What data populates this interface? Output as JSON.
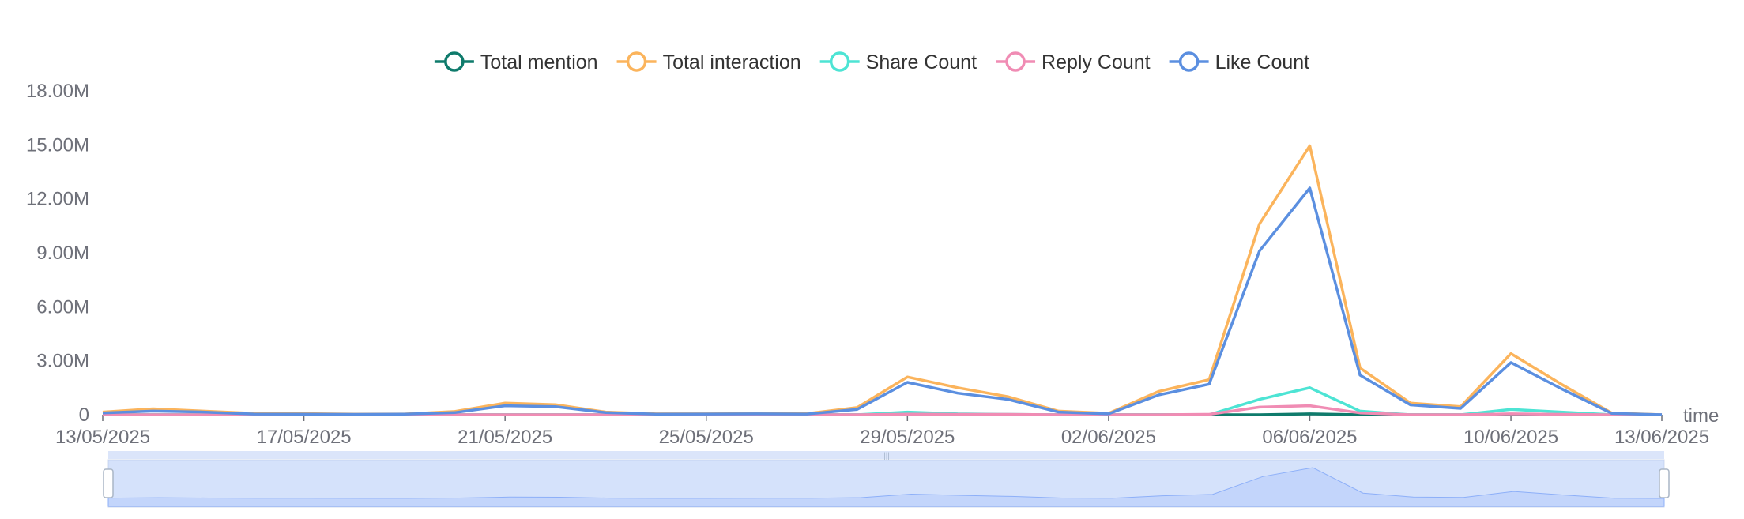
{
  "chart_data": {
    "type": "line",
    "xlabel": "time",
    "ylabel": "",
    "ylim": [
      0,
      18000000
    ],
    "y_ticks": [
      "0",
      "3.00M",
      "6.00M",
      "9.00M",
      "12.00M",
      "15.00M",
      "18.00M"
    ],
    "x_ticks": [
      "13/05/2025",
      "17/05/2025",
      "21/05/2025",
      "25/05/2025",
      "29/05/2025",
      "02/06/2025",
      "06/06/2025",
      "10/06/2025",
      "13/06/2025"
    ],
    "x": [
      "13/05/2025",
      "14/05/2025",
      "15/05/2025",
      "16/05/2025",
      "17/05/2025",
      "18/05/2025",
      "19/05/2025",
      "20/05/2025",
      "21/05/2025",
      "22/05/2025",
      "23/05/2025",
      "24/05/2025",
      "25/05/2025",
      "26/05/2025",
      "27/05/2025",
      "28/05/2025",
      "29/05/2025",
      "30/05/2025",
      "31/05/2025",
      "01/06/2025",
      "02/06/2025",
      "03/06/2025",
      "04/06/2025",
      "05/06/2025",
      "06/06/2025",
      "07/06/2025",
      "08/06/2025",
      "09/06/2025",
      "10/06/2025",
      "11/06/2025",
      "12/06/2025",
      "13/06/2025"
    ],
    "legend_position": "top-center",
    "grid": false,
    "series": [
      {
        "name": "Total mention",
        "color": "#0f7b6c",
        "values": [
          0,
          0,
          0,
          0,
          0,
          0,
          0,
          0,
          0,
          0,
          0,
          0,
          0,
          0,
          0,
          0,
          0,
          0,
          0,
          0,
          0,
          0,
          0,
          0,
          50000,
          0,
          0,
          0,
          0,
          0,
          0,
          0
        ]
      },
      {
        "name": "Total interaction",
        "color": "#fbb45c",
        "values": [
          150000,
          330000,
          200000,
          80000,
          60000,
          30000,
          40000,
          180000,
          650000,
          560000,
          150000,
          50000,
          50000,
          60000,
          60000,
          400000,
          2100000,
          1500000,
          1000000,
          200000,
          80000,
          1300000,
          1950000,
          10600000,
          14950000,
          2600000,
          650000,
          450000,
          3400000,
          1700000,
          100000,
          0
        ]
      },
      {
        "name": "Share Count",
        "color": "#4de4d4",
        "values": [
          0,
          0,
          0,
          0,
          0,
          0,
          0,
          0,
          0,
          0,
          0,
          0,
          0,
          0,
          0,
          0,
          150000,
          50000,
          20000,
          0,
          0,
          0,
          0,
          850000,
          1500000,
          200000,
          0,
          0,
          300000,
          150000,
          0,
          0
        ]
      },
      {
        "name": "Reply Count",
        "color": "#f08cb4",
        "values": [
          0,
          0,
          0,
          0,
          0,
          0,
          0,
          0,
          0,
          0,
          0,
          0,
          0,
          0,
          0,
          0,
          30000,
          20000,
          20000,
          0,
          0,
          0,
          20000,
          420000,
          500000,
          100000,
          0,
          0,
          50000,
          20000,
          0,
          0
        ]
      },
      {
        "name": "Like Count",
        "color": "#5b8fe0",
        "values": [
          100000,
          200000,
          150000,
          40000,
          30000,
          20000,
          30000,
          120000,
          500000,
          450000,
          120000,
          30000,
          40000,
          50000,
          40000,
          300000,
          1800000,
          1200000,
          850000,
          150000,
          50000,
          1100000,
          1700000,
          9100000,
          12600000,
          2200000,
          550000,
          350000,
          2900000,
          1450000,
          80000,
          0
        ]
      }
    ]
  }
}
